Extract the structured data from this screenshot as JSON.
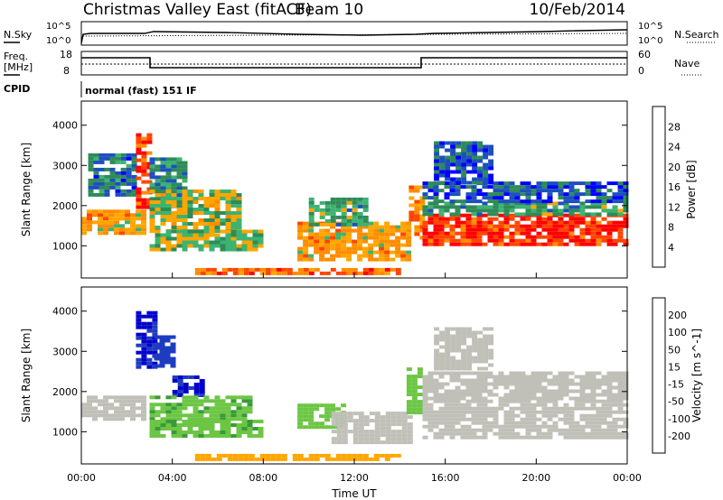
{
  "header": {
    "title": "Christmas Valley East (fitACF)",
    "beam": "Beam 10",
    "date": "10/Feb/2014"
  },
  "noise_panel": {
    "left_label": "N.Sky",
    "right_label": "N.Search",
    "ticks": [
      "10^5",
      "10^0"
    ]
  },
  "freq_panel": {
    "left_label_1": "Freq.",
    "left_label_2": "[MHz]",
    "left_ticks": [
      "18",
      "8"
    ],
    "right_ticks": [
      "60",
      "0"
    ],
    "right_label": "Nave"
  },
  "cpid_panel": {
    "label": "CPID",
    "value": "normal (fast) 151 IF"
  },
  "colors": {
    "power": [
      "#0000ff",
      "#1e4fbf",
      "#2e8b57",
      "#3cb371",
      "#ffa500",
      "#ff8c00",
      "#ff4500",
      "#ff0000"
    ],
    "velocity": [
      "#ff0000",
      "#ff4500",
      "#ff8c00",
      "#ffa500",
      "#c0c0c0",
      "#6cc644",
      "#3a9a3a",
      "#1e3cbf",
      "#0000cc"
    ],
    "ground_scatter": "#c0c0b8"
  },
  "chart_data": [
    {
      "type": "heatmap",
      "panel": "power",
      "ylabel": "Slant Range [km]",
      "yticks": [
        "1000",
        "2000",
        "3000",
        "4000"
      ],
      "ylim": [
        200,
        4600
      ],
      "xlim": [
        0,
        24
      ],
      "colorbar_label": "Power [dB]",
      "colorbar_ticks": [
        "4",
        "8",
        "12",
        "16",
        "20",
        "24",
        "28"
      ],
      "colorbar_range": [
        0,
        32
      ],
      "regions": [
        {
          "t0": 0.0,
          "t1": 2.8,
          "r0": 1300,
          "r1": 1900,
          "v": 20
        },
        {
          "t0": 0.3,
          "t1": 2.4,
          "r0": 2300,
          "r1": 3300,
          "v": 8
        },
        {
          "t0": 2.4,
          "t1": 3.0,
          "r0": 2000,
          "r1": 3800,
          "v": 26
        },
        {
          "t0": 3.0,
          "t1": 4.5,
          "r0": 2000,
          "r1": 3200,
          "v": 10
        },
        {
          "t0": 3.0,
          "t1": 7.0,
          "r0": 1400,
          "r1": 2400,
          "v": 16
        },
        {
          "t0": 3.0,
          "t1": 7.8,
          "r0": 900,
          "r1": 1400,
          "v": 14
        },
        {
          "t0": 5.0,
          "t1": 14.0,
          "r0": 300,
          "r1": 450,
          "v": 24
        },
        {
          "t0": 9.5,
          "t1": 14.5,
          "r0": 700,
          "r1": 1600,
          "v": 20
        },
        {
          "t0": 10.0,
          "t1": 12.5,
          "r0": 1500,
          "r1": 2200,
          "v": 12
        },
        {
          "t0": 14.4,
          "t1": 15.0,
          "r0": 1200,
          "r1": 2500,
          "v": 22
        },
        {
          "t0": 15.0,
          "t1": 24.0,
          "r0": 1000,
          "r1": 1800,
          "v": 28
        },
        {
          "t0": 15.0,
          "t1": 24.0,
          "r0": 1800,
          "r1": 2100,
          "v": 12
        },
        {
          "t0": 15.0,
          "t1": 24.0,
          "r0": 2100,
          "r1": 2600,
          "v": 6
        },
        {
          "t0": 15.5,
          "t1": 18.0,
          "r0": 2600,
          "r1": 3600,
          "v": 6
        }
      ]
    },
    {
      "type": "heatmap",
      "panel": "velocity",
      "ylabel": "Slant Range [km]",
      "yticks": [
        "1000",
        "2000",
        "3000",
        "4000"
      ],
      "ylim": [
        200,
        4600
      ],
      "xlim": [
        0,
        24
      ],
      "xlabel": "Time UT",
      "xticks": [
        "00:00",
        "04:00",
        "08:00",
        "12:00",
        "16:00",
        "20:00",
        "00:00"
      ],
      "colorbar_label": "Velocity [m s^-1]",
      "colorbar_ticks": [
        "200",
        "100",
        "50",
        "15",
        "-15",
        "-50",
        "-100",
        "-200"
      ],
      "regions": [
        {
          "t0": 0.0,
          "t1": 2.8,
          "r0": 1300,
          "r1": 1900,
          "v": 0,
          "gs": true
        },
        {
          "t0": 2.4,
          "t1": 3.2,
          "r0": 2600,
          "r1": 4000,
          "v": 200
        },
        {
          "t0": 3.2,
          "t1": 4.0,
          "r0": 2600,
          "r1": 3400,
          "v": 150
        },
        {
          "t0": 4.0,
          "t1": 5.2,
          "r0": 1900,
          "r1": 2400,
          "v": 200
        },
        {
          "t0": 3.0,
          "t1": 7.5,
          "r0": 1300,
          "r1": 1900,
          "v": 40
        },
        {
          "t0": 3.0,
          "t1": 7.8,
          "r0": 900,
          "r1": 1300,
          "v": 40
        },
        {
          "t0": 5.0,
          "t1": 14.0,
          "r0": 300,
          "r1": 450,
          "v": -30
        },
        {
          "t0": 9.5,
          "t1": 11.5,
          "r0": 1100,
          "r1": 1700,
          "v": 35
        },
        {
          "t0": 11.0,
          "t1": 14.5,
          "r0": 700,
          "r1": 1500,
          "v": 0,
          "gs": true
        },
        {
          "t0": 14.3,
          "t1": 15.0,
          "r0": 1500,
          "r1": 2600,
          "v": 35
        },
        {
          "t0": 15.0,
          "t1": 24.0,
          "r0": 900,
          "r1": 1800,
          "v": 0,
          "gs": true
        },
        {
          "t0": 15.0,
          "t1": 24.0,
          "r0": 1800,
          "r1": 2500,
          "v": 0,
          "gs": true
        },
        {
          "t0": 15.5,
          "t1": 18.0,
          "r0": 2600,
          "r1": 3600,
          "v": 0,
          "gs": true
        }
      ]
    }
  ]
}
